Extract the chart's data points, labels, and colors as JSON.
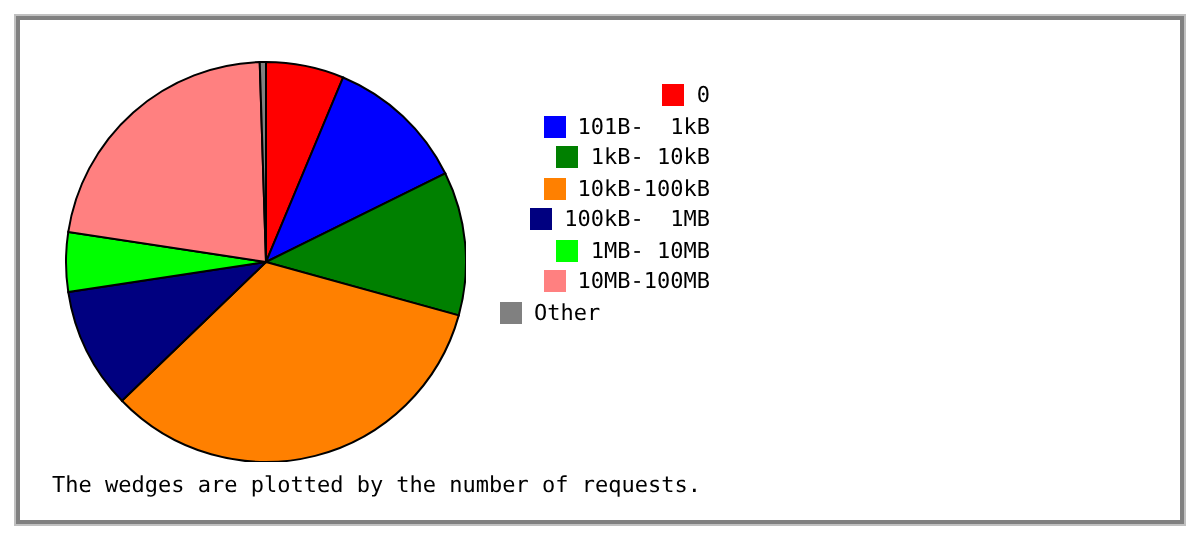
{
  "chart_data": {
    "type": "pie",
    "categories": [
      "0",
      "101B-  1kB",
      "1kB- 10kB",
      "10kB-100kB",
      "100kB-  1MB",
      "1MB- 10MB",
      "10MB-100MB",
      "Other"
    ],
    "values": [
      6.3,
      11.4,
      11.6,
      33.5,
      9.8,
      4.8,
      22.1,
      0.5
    ],
    "colors": [
      "#ff0000",
      "#0000ff",
      "#008000",
      "#ff8000",
      "#000080",
      "#00ff00",
      "#ff8080",
      "#808080"
    ],
    "legend": "right",
    "annotations": [
      "The wedges are plotted by the number of requests."
    ]
  }
}
